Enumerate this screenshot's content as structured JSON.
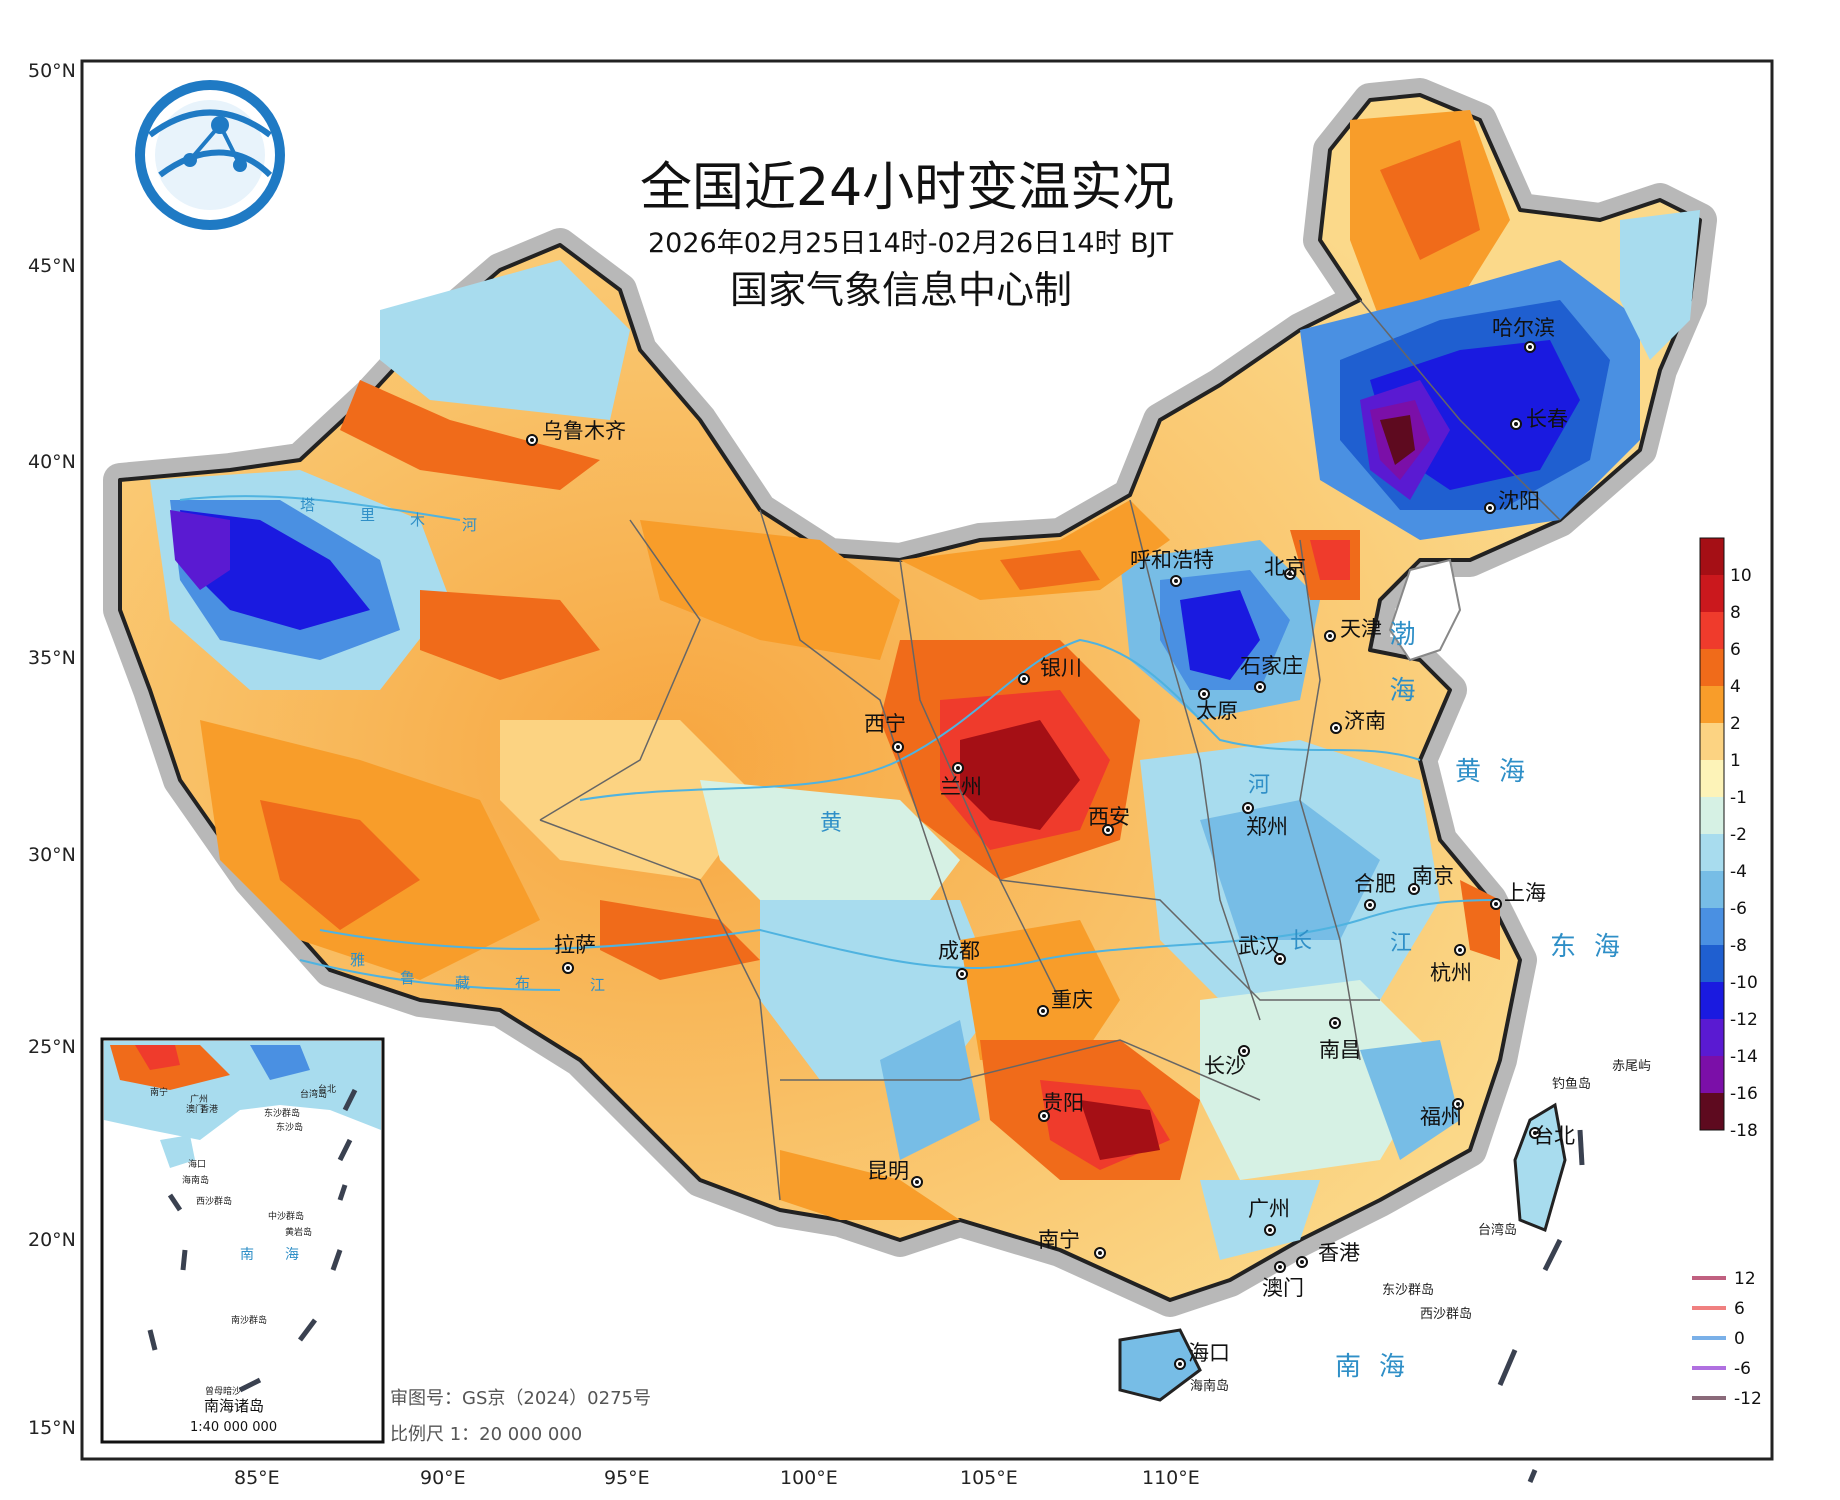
{
  "title": {
    "main": "全国近24小时变温实况",
    "period": "2026年02月25日14时-02月26日14时 BJT",
    "org": "国家气象信息中心制"
  },
  "axes": {
    "lat_labels": [
      "50°N",
      "45°N",
      "40°N",
      "35°N",
      "30°N",
      "25°N",
      "20°N",
      "15°N"
    ],
    "lon_labels": [
      "85°E",
      "90°E",
      "95°E",
      "100°E",
      "105°E",
      "110°E"
    ]
  },
  "cities": [
    {
      "name": "乌鲁木齐"
    },
    {
      "name": "哈尔滨"
    },
    {
      "name": "长春"
    },
    {
      "name": "沈阳"
    },
    {
      "name": "呼和浩特"
    },
    {
      "name": "北京"
    },
    {
      "name": "天津"
    },
    {
      "name": "石家庄"
    },
    {
      "name": "银川"
    },
    {
      "name": "太原"
    },
    {
      "name": "济南"
    },
    {
      "name": "西宁"
    },
    {
      "name": "兰州"
    },
    {
      "name": "西安"
    },
    {
      "name": "郑州"
    },
    {
      "name": "合肥"
    },
    {
      "name": "南京"
    },
    {
      "name": "上海"
    },
    {
      "name": "拉萨"
    },
    {
      "name": "成都"
    },
    {
      "name": "武汉"
    },
    {
      "name": "杭州"
    },
    {
      "name": "重庆"
    },
    {
      "name": "南昌"
    },
    {
      "name": "长沙"
    },
    {
      "name": "福州"
    },
    {
      "name": "贵阳"
    },
    {
      "name": "昆明"
    },
    {
      "name": "台北"
    },
    {
      "name": "广州"
    },
    {
      "name": "南宁"
    },
    {
      "name": "香港"
    },
    {
      "name": "澳门"
    },
    {
      "name": "海口"
    }
  ],
  "seas": [
    "渤海",
    "黄海",
    "东海",
    "南海"
  ],
  "islands": [
    "钓鱼岛",
    "赤尾屿",
    "台湾岛",
    "东沙群岛",
    "西沙群岛",
    "海南岛"
  ],
  "legend": {
    "fill_levels": [
      "10",
      "8",
      "6",
      "4",
      "2",
      "1",
      "-1",
      "-2",
      "-4",
      "-6",
      "-8",
      "-10",
      "-12",
      "-14",
      "-16",
      "-18"
    ],
    "fill_colors": [
      "#a50f15",
      "#cb181d",
      "#ef3b2c",
      "#f06b1a",
      "#f89d2a",
      "#fcd382",
      "#fdf3b8",
      "#d6f1e4",
      "#a8dcee",
      "#77bde6",
      "#4a90e2",
      "#1f5fd0",
      "#1a1ae0",
      "#5a1ad2",
      "#7b0fa8",
      "#5e0a1f"
    ],
    "line_levels": [
      "12",
      "6",
      "0",
      "-6",
      "-12"
    ],
    "line_colors": [
      "#c06080",
      "#f08080",
      "#7ab0e8",
      "#b070e0",
      "#8a6a7a"
    ]
  },
  "inset": {
    "title": "南海诸岛",
    "scale": "1:40 000 000",
    "labels": [
      "南宁",
      "广州",
      "台北",
      "香港",
      "澳门",
      "东沙群岛",
      "东沙岛",
      "海口",
      "海南岛",
      "西沙群岛",
      "中沙群岛",
      "黄岩岛",
      "南",
      "海",
      "南沙群岛",
      "曾母暗沙",
      "台湾岛"
    ]
  },
  "footer": {
    "review_no": "审图号：GS京（2024）0275号",
    "scale": "比例尺  1：20 000 000"
  },
  "rivers": [
    "塔",
    "里",
    "木",
    "河",
    "黄",
    "河",
    "长",
    "江",
    "雅",
    "鲁",
    "藏",
    "布",
    "江"
  ]
}
